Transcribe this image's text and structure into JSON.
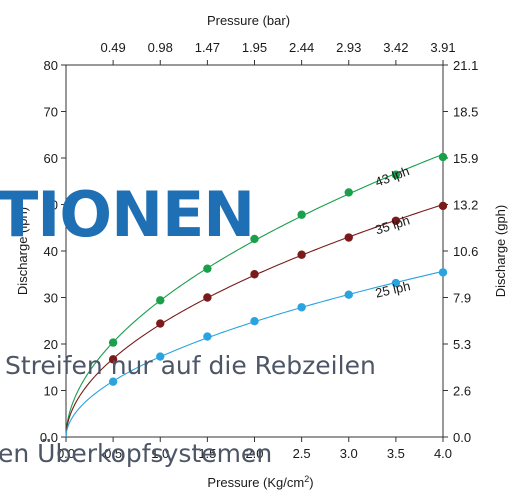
{
  "chart_data": {
    "type": "line",
    "xlabel": "Pressure (Kg/cm",
    "xlabel_sup": "2",
    "xlabel_close": ")",
    "x2label": "Pressure (bar)",
    "ylabel": "Discharge (lph)",
    "y2label": "Discharge (gph)",
    "xlim": [
      0,
      4.0
    ],
    "ylim": [
      0,
      80
    ],
    "x_ticks": [
      "0.0",
      "0.5",
      "1.0",
      "1.5",
      "2.0",
      "2.5",
      "3.0",
      "3.5",
      "4.0"
    ],
    "x2_ticks": [
      "0.49",
      "0.98",
      "1.47",
      "1.95",
      "2.44",
      "2.93",
      "3.42",
      "3.91"
    ],
    "y_ticks": [
      "0.0",
      "10",
      "20",
      "30",
      "40",
      "50",
      "60",
      "70",
      "80"
    ],
    "y2_ticks": [
      "0.0",
      "2.6",
      "5.3",
      "7.9",
      "10.6",
      "13.2",
      "15.9",
      "18.5",
      "21.1"
    ],
    "x": [
      0.5,
      1.0,
      1.5,
      2.0,
      2.5,
      3.0,
      3.5,
      4.0
    ],
    "series": [
      {
        "name": "43 lph",
        "color": "#1a9f4b",
        "values": [
          20.3,
          29.4,
          36.2,
          42.6,
          47.8,
          52.6,
          56.4,
          60.2
        ]
      },
      {
        "name": "35 lph",
        "color": "#7a1a1a",
        "values": [
          16.7,
          24.4,
          30.0,
          35.0,
          39.2,
          42.9,
          46.5,
          49.7
        ]
      },
      {
        "name": "25 lph",
        "color": "#2aa3df",
        "values": [
          11.9,
          17.3,
          21.6,
          24.9,
          27.9,
          30.6,
          33.1,
          35.4
        ]
      }
    ],
    "grid": false,
    "legend": "inline labels at right"
  },
  "overlay": {
    "heading": "TIONEN",
    "line1": "Streifen nur auf die Rebzeilen",
    "line2": "en Überkopfsystemen"
  }
}
